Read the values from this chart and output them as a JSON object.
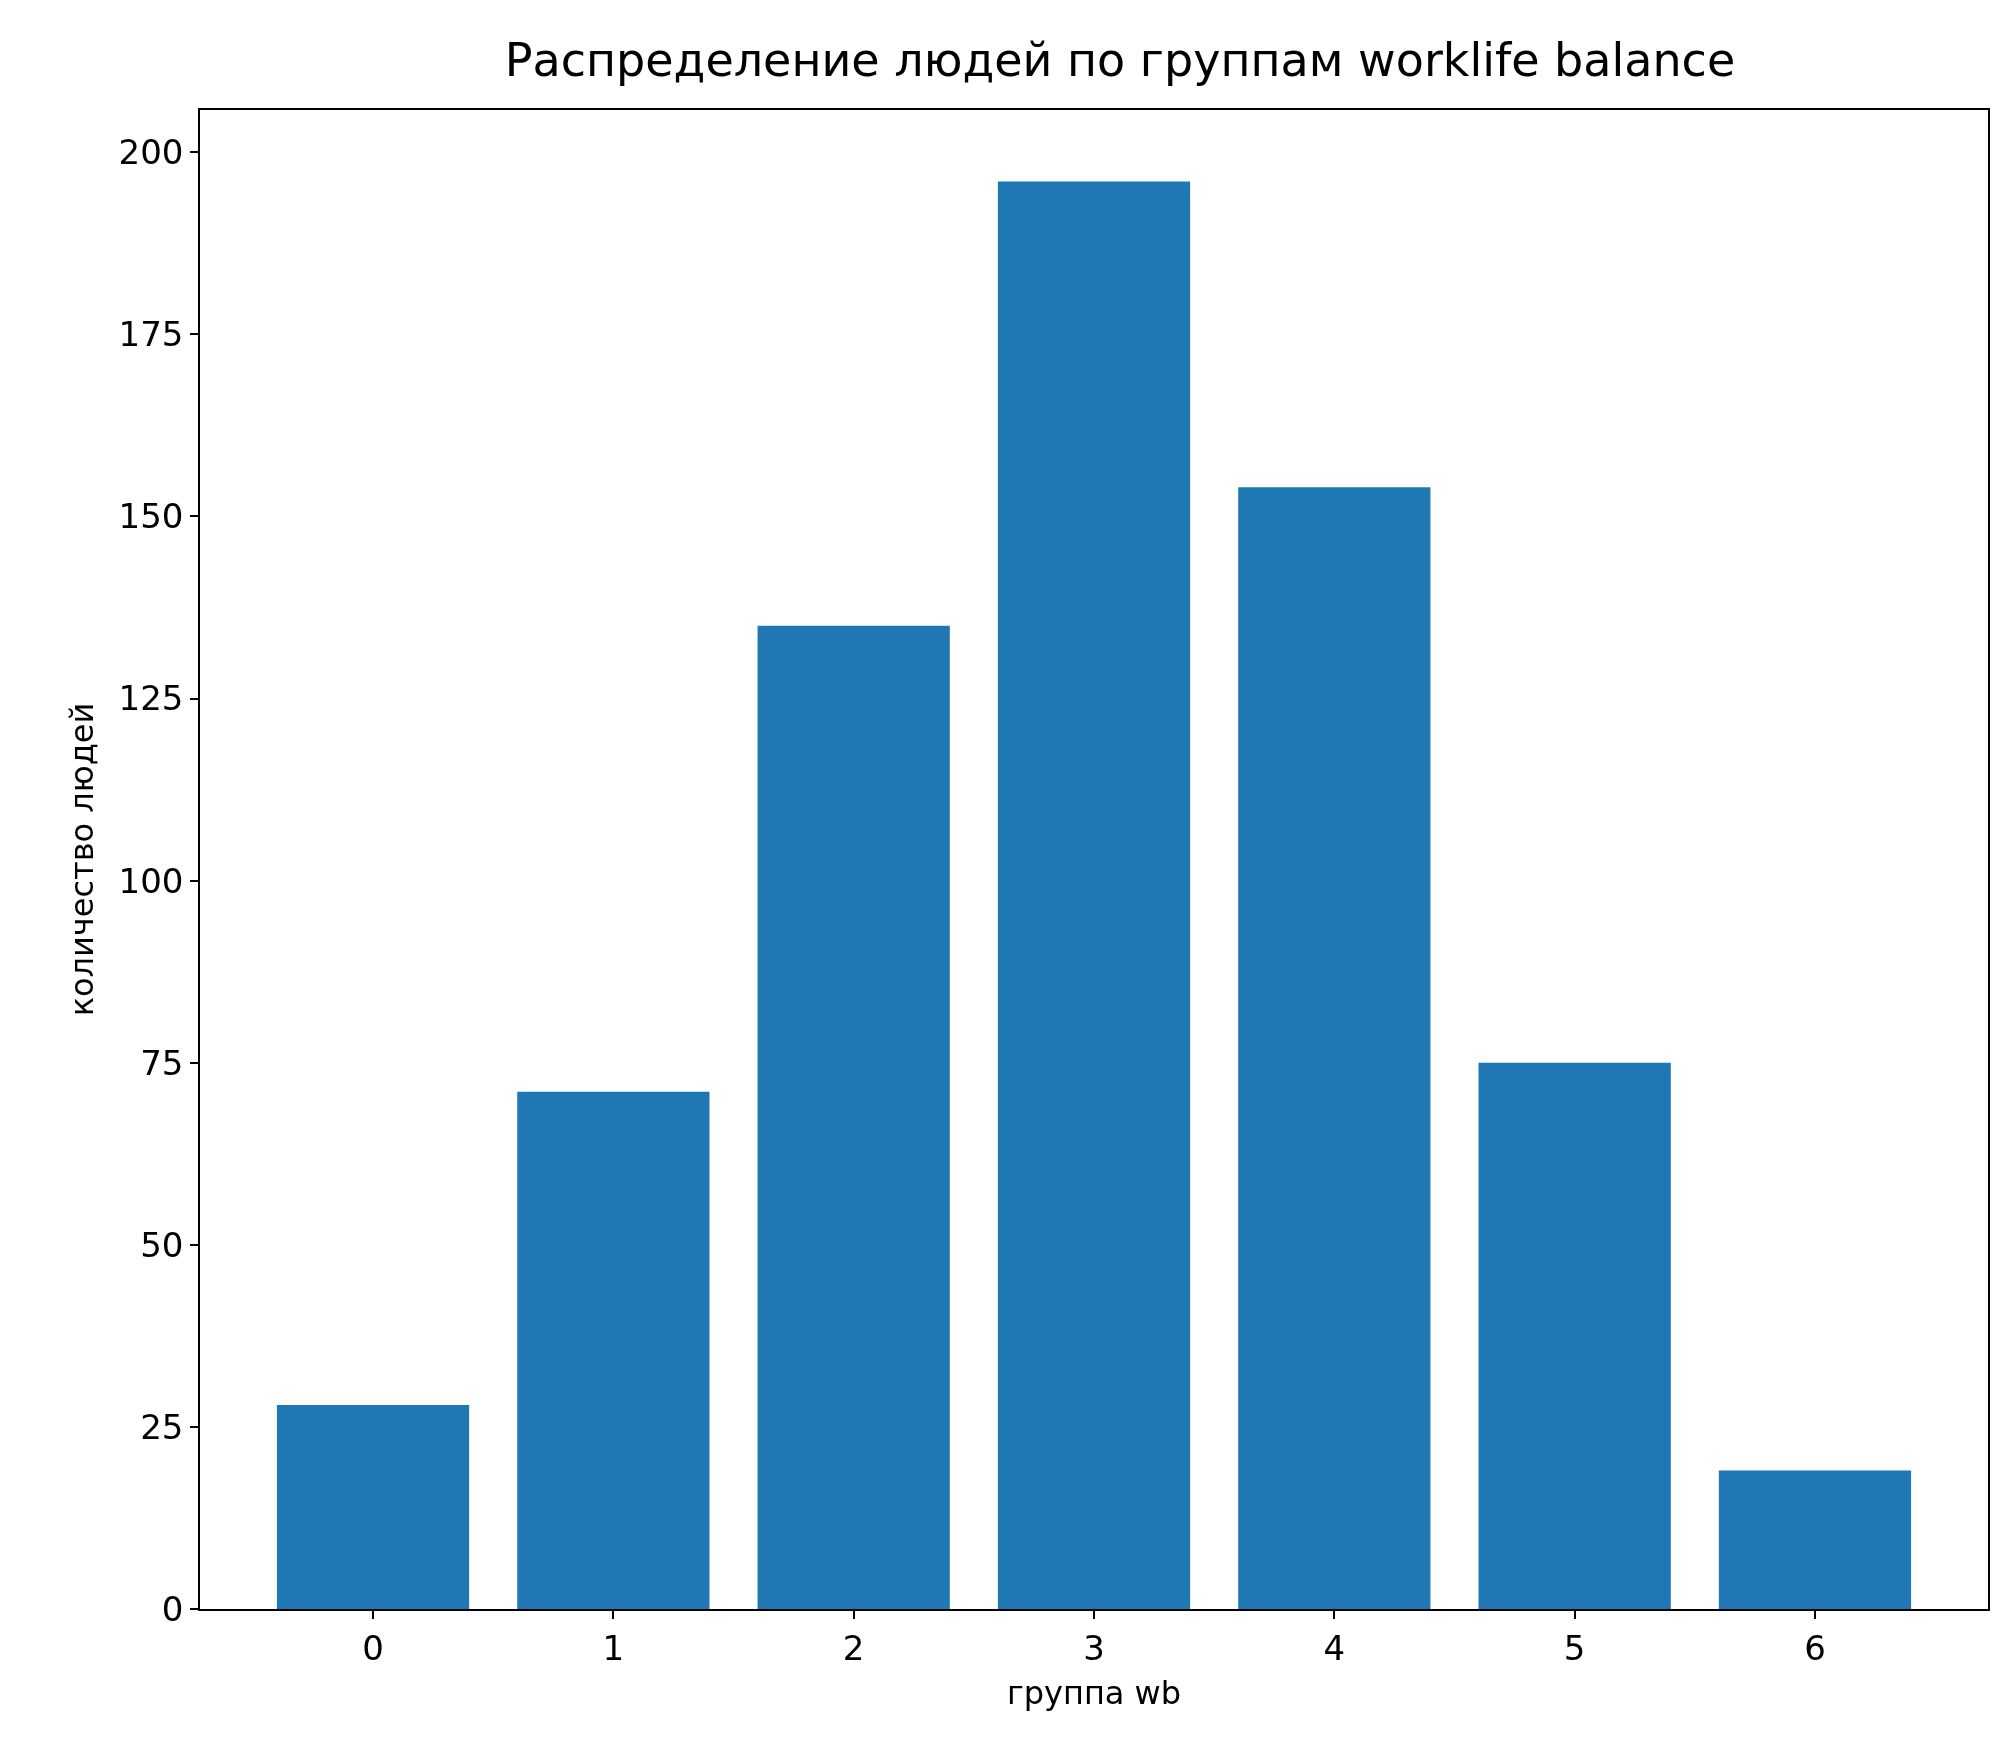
{
  "chart_data": {
    "type": "bar",
    "title": "Распределение людей по группам worklife balance",
    "xlabel": "группа wb",
    "ylabel": "количество людей",
    "x": [
      0,
      1,
      2,
      3,
      4,
      5,
      6
    ],
    "values": [
      28,
      71,
      135,
      196,
      154,
      75,
      19
    ],
    "color": "#1f77b4",
    "xlim": [
      -0.72,
      6.72
    ],
    "xticks": [
      0,
      1,
      2,
      3,
      4,
      5,
      6
    ],
    "ylim": [
      0,
      205.8
    ],
    "yticks": [
      0,
      25,
      50,
      75,
      100,
      125,
      150,
      175,
      200
    ]
  }
}
